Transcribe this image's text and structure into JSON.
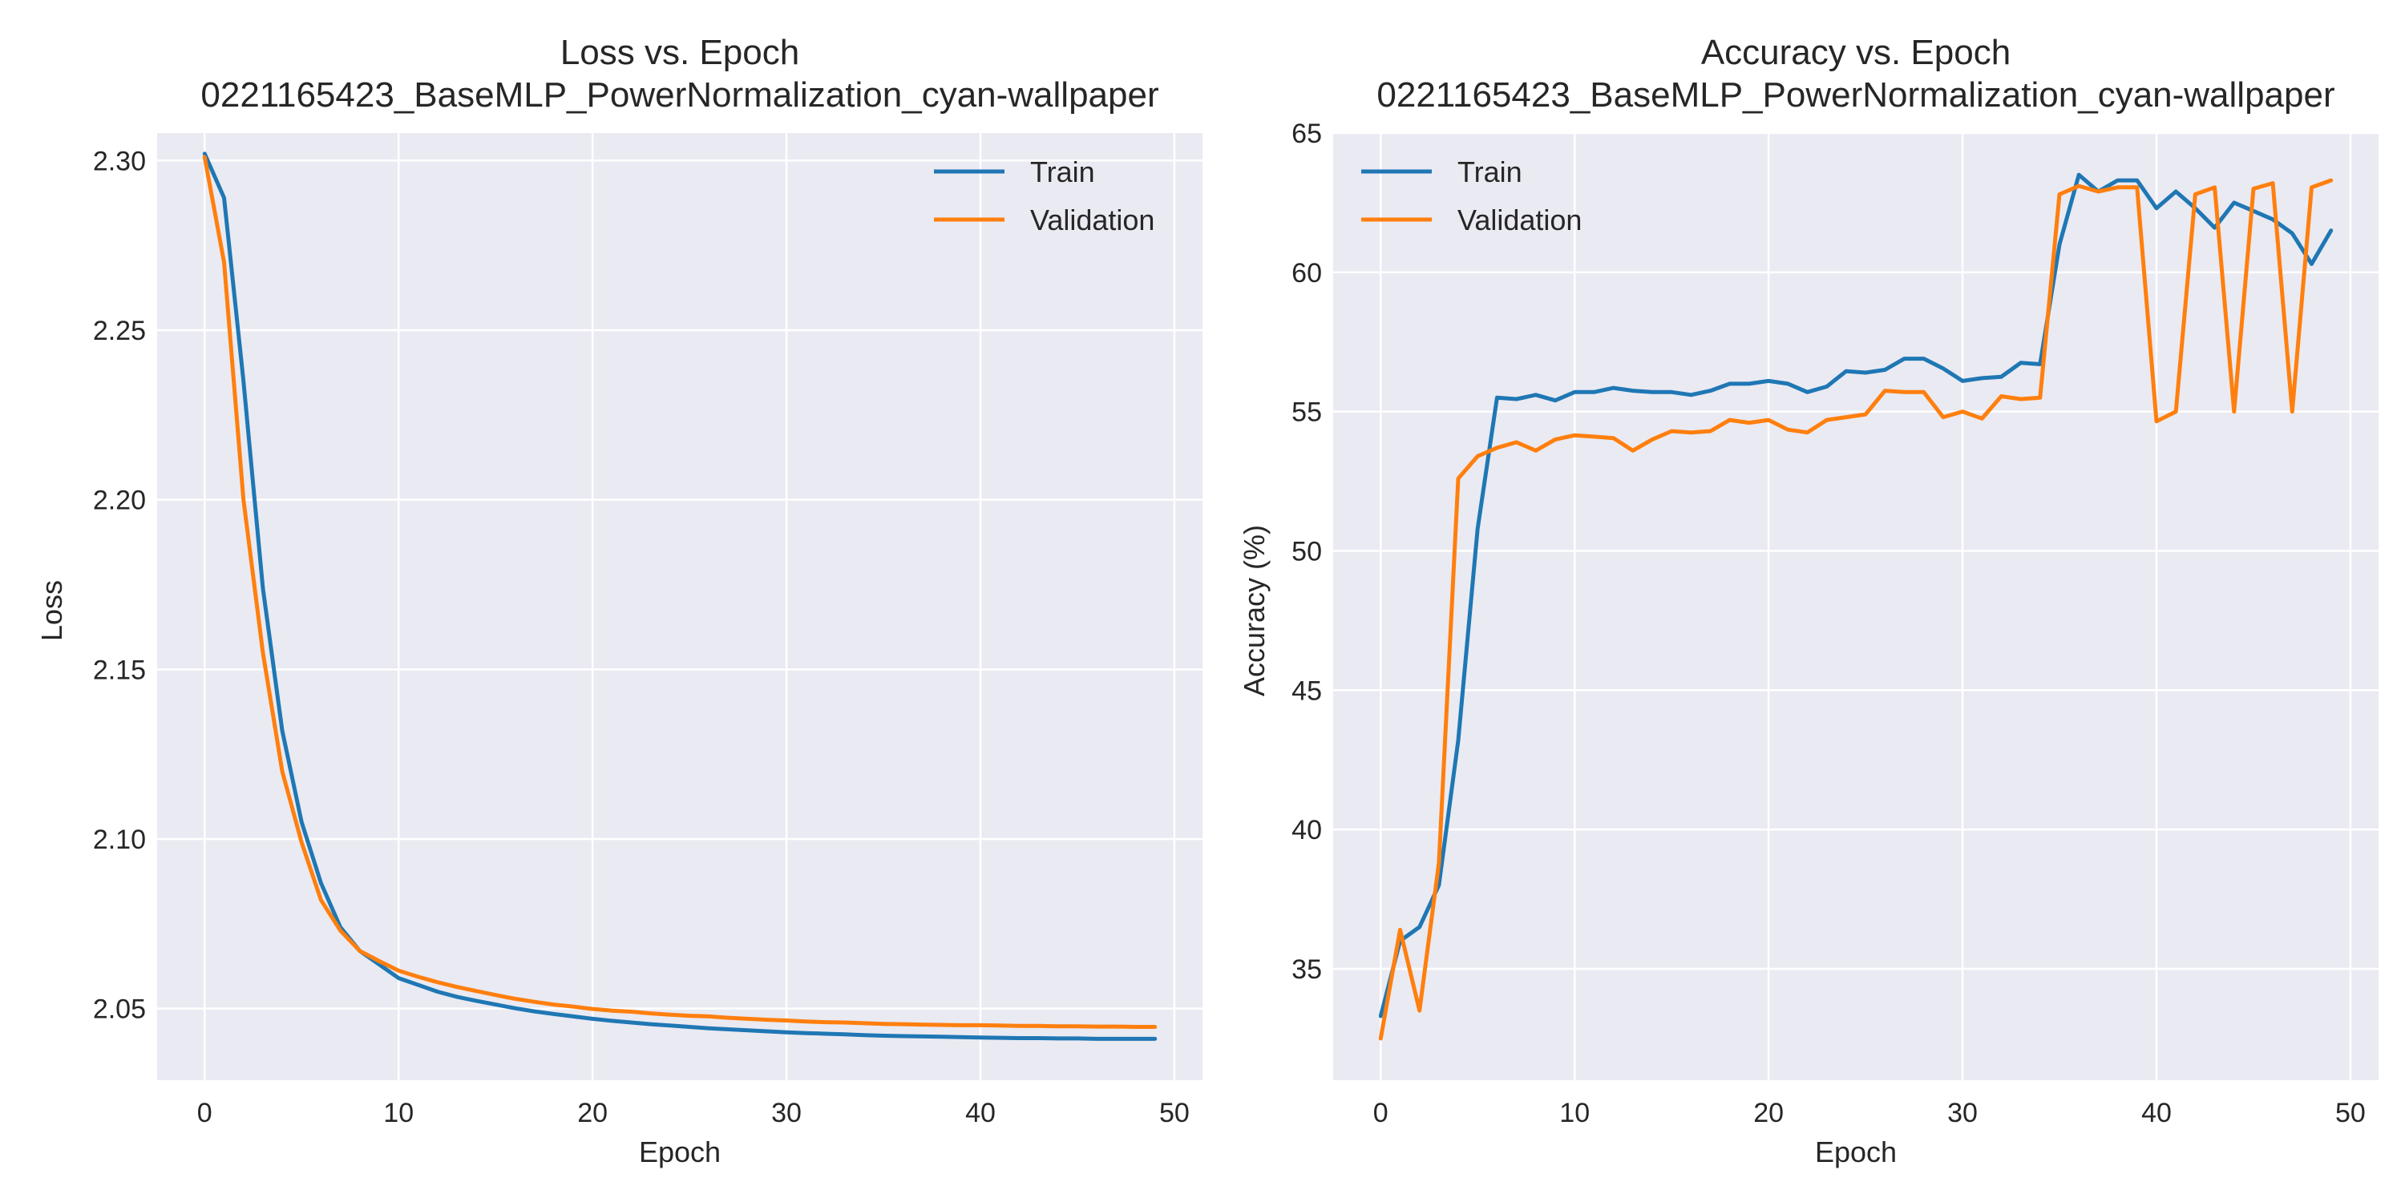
{
  "colors": {
    "plot_background": "#eaeaf2",
    "grid": "#ffffff",
    "train": "#1f77b4",
    "validation": "#ff7f0e"
  },
  "chart_data": [
    {
      "type": "line",
      "title": "Loss vs. Epoch",
      "subtitle": "0221165423_BaseMLP_PowerNormalization_cyan-wallpaper",
      "xlabel": "Epoch",
      "ylabel": "Loss",
      "xlim": [
        -2.45,
        51.45
      ],
      "ylim": [
        2.0289,
        2.3081
      ],
      "xticks": [
        0,
        10,
        20,
        30,
        40,
        50
      ],
      "yticks": [
        2.05,
        2.1,
        2.15,
        2.2,
        2.25,
        2.3
      ],
      "ytick_labels": [
        "2.05",
        "2.10",
        "2.15",
        "2.20",
        "2.25",
        "2.30"
      ],
      "grid": true,
      "legend_position": "top-right",
      "x": [
        0,
        1,
        2,
        3,
        4,
        5,
        6,
        7,
        8,
        9,
        10,
        11,
        12,
        13,
        14,
        15,
        16,
        17,
        18,
        19,
        20,
        21,
        22,
        23,
        24,
        25,
        26,
        27,
        28,
        29,
        30,
        31,
        32,
        33,
        34,
        35,
        36,
        37,
        38,
        39,
        40,
        41,
        42,
        43,
        44,
        45,
        46,
        47,
        48,
        49
      ],
      "series": [
        {
          "name": "Train",
          "color_key": "train",
          "values": [
            2.302,
            2.289,
            2.235,
            2.174,
            2.132,
            2.105,
            2.087,
            2.074,
            2.067,
            2.063,
            2.059,
            2.057,
            2.055,
            2.0535,
            2.0523,
            2.0512,
            2.0501,
            2.0492,
            2.0484,
            2.0477,
            2.047,
            2.0464,
            2.0459,
            2.0454,
            2.045,
            2.0446,
            2.0442,
            2.0439,
            2.0436,
            2.0433,
            2.043,
            2.0428,
            2.0426,
            2.0424,
            2.0422,
            2.042,
            2.0419,
            2.0418,
            2.0417,
            2.0416,
            2.0415,
            2.0414,
            2.0413,
            2.0413,
            2.0412,
            2.0412,
            2.0411,
            2.0411,
            2.0411,
            2.0411
          ]
        },
        {
          "name": "Validation",
          "color_key": "validation",
          "values": [
            2.301,
            2.27,
            2.2,
            2.155,
            2.12,
            2.099,
            2.082,
            2.073,
            2.067,
            2.064,
            2.0612,
            2.0594,
            2.0578,
            2.0564,
            2.0552,
            2.054,
            2.0529,
            2.052,
            2.0512,
            2.0506,
            2.0499,
            2.0494,
            2.0491,
            2.0486,
            2.0482,
            2.0479,
            2.0477,
            2.0473,
            2.047,
            2.0467,
            2.0465,
            2.0462,
            2.046,
            2.0459,
            2.0457,
            2.0455,
            2.0454,
            2.0453,
            2.0452,
            2.0451,
            2.0451,
            2.045,
            2.0449,
            2.0449,
            2.0448,
            2.0448,
            2.0447,
            2.0447,
            2.0446,
            2.0446
          ]
        }
      ]
    },
    {
      "type": "line",
      "title": "Accuracy vs. Epoch",
      "subtitle": "0221165423_BaseMLP_PowerNormalization_cyan-wallpaper",
      "xlabel": "Epoch",
      "ylabel": "Accuracy (%)",
      "xlim": [
        -2.45,
        51.45
      ],
      "ylim": [
        31.0,
        65.0
      ],
      "xticks": [
        0,
        10,
        20,
        30,
        40,
        50
      ],
      "yticks": [
        35,
        40,
        45,
        50,
        55,
        60,
        65
      ],
      "ytick_labels": [
        "35",
        "40",
        "45",
        "50",
        "55",
        "60",
        "65"
      ],
      "grid": true,
      "legend_position": "top-left",
      "x": [
        0,
        1,
        2,
        3,
        4,
        5,
        6,
        7,
        8,
        9,
        10,
        11,
        12,
        13,
        14,
        15,
        16,
        17,
        18,
        19,
        20,
        21,
        22,
        23,
        24,
        25,
        26,
        27,
        28,
        29,
        30,
        31,
        32,
        33,
        34,
        35,
        36,
        37,
        38,
        39,
        40,
        41,
        42,
        43,
        44,
        45,
        46,
        47,
        48,
        49
      ],
      "series": [
        {
          "name": "Train",
          "color_key": "train",
          "values": [
            33.3,
            36.0,
            36.5,
            38.0,
            43.2,
            50.8,
            55.5,
            55.45,
            55.6,
            55.4,
            55.7,
            55.7,
            55.85,
            55.75,
            55.7,
            55.7,
            55.6,
            55.75,
            56.0,
            56.0,
            56.1,
            56.0,
            55.7,
            55.9,
            56.45,
            56.4,
            56.5,
            56.9,
            56.9,
            56.55,
            56.1,
            56.2,
            56.25,
            56.75,
            56.7,
            61.0,
            63.5,
            62.9,
            63.3,
            63.3,
            62.3,
            62.9,
            62.3,
            61.6,
            62.5,
            62.2,
            61.9,
            61.4,
            60.3,
            61.5
          ]
        },
        {
          "name": "Validation",
          "color_key": "validation",
          "values": [
            32.5,
            36.4,
            33.5,
            38.8,
            52.6,
            53.4,
            53.7,
            53.9,
            53.6,
            54.0,
            54.15,
            54.1,
            54.05,
            53.6,
            54.0,
            54.3,
            54.25,
            54.3,
            54.7,
            54.6,
            54.7,
            54.35,
            54.25,
            54.7,
            54.8,
            54.9,
            55.75,
            55.7,
            55.7,
            54.8,
            55.0,
            54.75,
            55.55,
            55.45,
            55.5,
            62.8,
            63.1,
            62.9,
            63.05,
            63.05,
            54.65,
            55.0,
            62.8,
            63.05,
            55.0,
            63.0,
            63.2,
            55.0,
            63.05,
            63.3
          ]
        }
      ]
    }
  ]
}
